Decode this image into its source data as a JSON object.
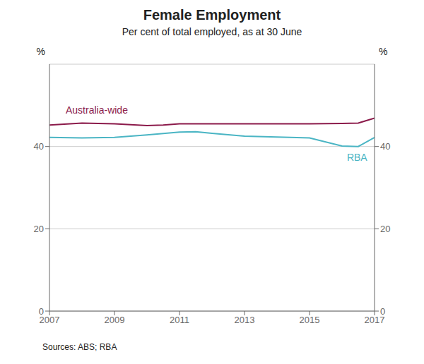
{
  "chart_data": {
    "type": "line",
    "title": "Female Employment",
    "subtitle": "Per cent of total employed, as at 30 June",
    "source": "Sources: ABS; RBA",
    "ylabel": "%",
    "y2label": "%",
    "xlim": [
      2007,
      2017
    ],
    "xticks": [
      2007,
      2009,
      2011,
      2013,
      2015,
      2017
    ],
    "ylim": [
      0,
      60
    ],
    "yticks": [
      0,
      20,
      40
    ],
    "y2lim": [
      0,
      60
    ],
    "y2ticks": [
      0,
      20,
      40
    ],
    "grid": true,
    "series": [
      {
        "name": "Australia-wide",
        "color": "#8b1a4a",
        "x": [
          2007,
          2008,
          2009,
          2010,
          2010.5,
          2011,
          2012,
          2012.5,
          2013,
          2014,
          2015,
          2016,
          2016.5,
          2017
        ],
        "values": [
          45.2,
          45.7,
          45.5,
          45.1,
          45.2,
          45.5,
          45.5,
          45.5,
          45.5,
          45.5,
          45.5,
          45.6,
          45.7,
          46.9
        ],
        "label_position": {
          "x": 2007.5,
          "y": 47.5,
          "side": "above"
        }
      },
      {
        "name": "RBA",
        "color": "#4ab5c4",
        "x": [
          2007,
          2008,
          2009,
          2010,
          2011,
          2011.5,
          2012,
          2013,
          2014,
          2015,
          2016,
          2016.5,
          2017
        ],
        "values": [
          42.2,
          42.1,
          42.2,
          42.8,
          43.5,
          43.6,
          43.2,
          42.5,
          42.3,
          42.1,
          40.1,
          40.0,
          42.2
        ],
        "label_position": {
          "x": 2016.15,
          "y": 38.8,
          "side": "below"
        }
      }
    ]
  }
}
